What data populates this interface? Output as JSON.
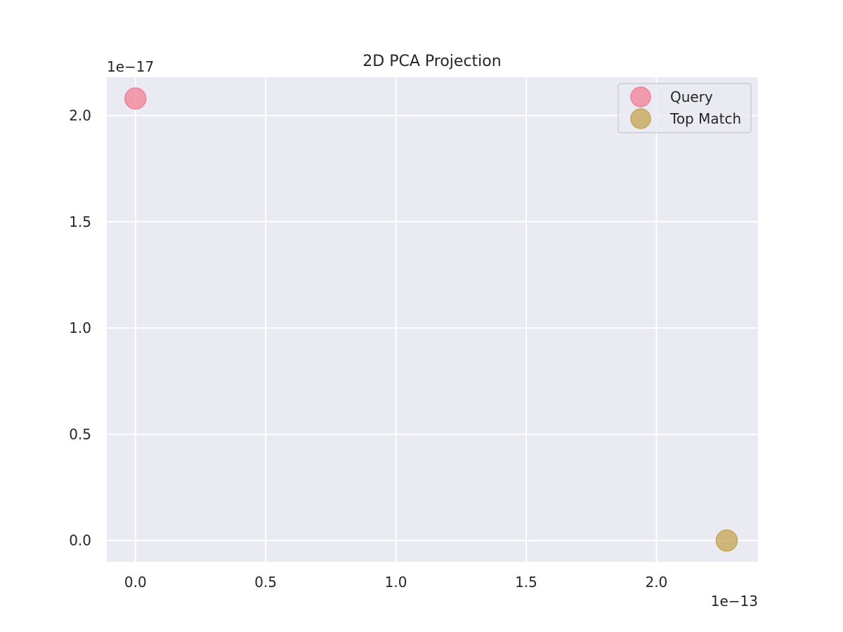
{
  "chart_data": {
    "type": "scatter",
    "title": "2D PCA Projection",
    "xlabel": "",
    "ylabel": "",
    "x_offset_label": "1e−13",
    "y_offset_label": "1e−17",
    "xlim": [
      -0.11,
      2.39
    ],
    "ylim": [
      -0.1,
      2.18
    ],
    "x_ticks": [
      0.0,
      0.5,
      1.0,
      1.5,
      2.0
    ],
    "x_tick_labels": [
      "0.0",
      "0.5",
      "1.0",
      "1.5",
      "2.0"
    ],
    "y_ticks": [
      0.0,
      0.5,
      1.0,
      1.5,
      2.0
    ],
    "y_tick_labels": [
      "0.0",
      "0.5",
      "1.0",
      "1.5",
      "2.0"
    ],
    "grid": true,
    "legend_position": "top-right",
    "series": [
      {
        "name": "Query",
        "color": "#f27f97",
        "x": [
          0.0
        ],
        "y": [
          2.08
        ]
      },
      {
        "name": "Top Match",
        "color": "#c4a451",
        "x": [
          2.27
        ],
        "y": [
          0.0
        ]
      }
    ]
  }
}
